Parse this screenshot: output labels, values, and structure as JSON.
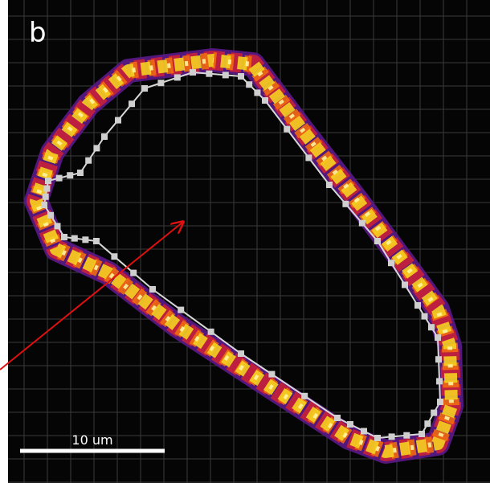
{
  "panel_label": "b",
  "scale_bar": {
    "label": "10 um"
  }
}
